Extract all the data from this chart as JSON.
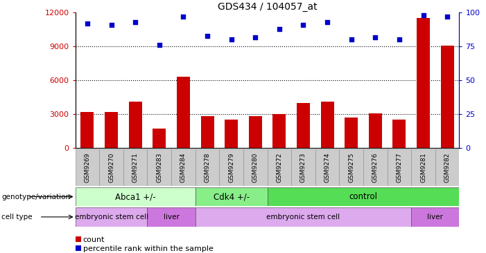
{
  "title": "GDS434 / 104057_at",
  "samples": [
    "GSM9269",
    "GSM9270",
    "GSM9271",
    "GSM9283",
    "GSM9284",
    "GSM9278",
    "GSM9279",
    "GSM9280",
    "GSM9272",
    "GSM9273",
    "GSM9274",
    "GSM9275",
    "GSM9276",
    "GSM9277",
    "GSM9281",
    "GSM9282"
  ],
  "counts": [
    3200,
    3200,
    4100,
    1700,
    6300,
    2800,
    2500,
    2800,
    3000,
    4000,
    4100,
    2700,
    3100,
    2500,
    11500,
    9100
  ],
  "percentiles": [
    92,
    91,
    93,
    76,
    97,
    83,
    80,
    82,
    88,
    91,
    93,
    80,
    82,
    80,
    98,
    97
  ],
  "bar_color": "#cc0000",
  "dot_color": "#0000cc",
  "ylim_left": [
    0,
    12000
  ],
  "ylim_right": [
    0,
    100
  ],
  "yticks_left": [
    0,
    3000,
    6000,
    9000,
    12000
  ],
  "yticks_right": [
    0,
    25,
    50,
    75,
    100
  ],
  "grid_values": [
    3000,
    6000,
    9000
  ],
  "genotype_groups": [
    {
      "label": "Abca1 +/-",
      "start": 0,
      "end": 5,
      "color": "#ccffcc"
    },
    {
      "label": "Cdk4 +/-",
      "start": 5,
      "end": 8,
      "color": "#88ee88"
    },
    {
      "label": "control",
      "start": 8,
      "end": 16,
      "color": "#55dd55"
    }
  ],
  "celltype_groups": [
    {
      "label": "embryonic stem cell",
      "start": 0,
      "end": 3,
      "color": "#ddaaee"
    },
    {
      "label": "liver",
      "start": 3,
      "end": 5,
      "color": "#cc77dd"
    },
    {
      "label": "embryonic stem cell",
      "start": 5,
      "end": 14,
      "color": "#ddaaee"
    },
    {
      "label": "liver",
      "start": 14,
      "end": 16,
      "color": "#cc77dd"
    }
  ],
  "legend_count_label": "count",
  "legend_pct_label": "percentile rank within the sample",
  "bar_width": 0.55,
  "tick_label_fontsize": 6.5,
  "title_fontsize": 10,
  "label_fontsize": 8,
  "geno_label_fontsize": 8.5,
  "cell_label_fontsize": 7.5
}
